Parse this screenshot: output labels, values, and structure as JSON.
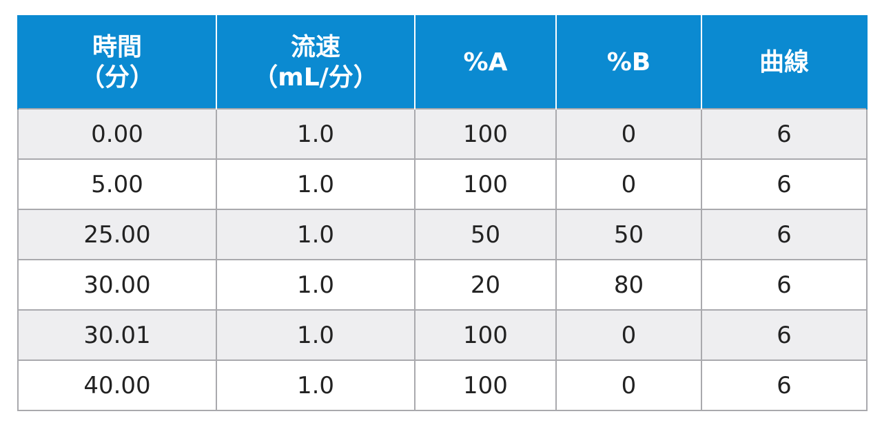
{
  "table": {
    "headers": [
      {
        "line1": "時間",
        "line2": "（分）"
      },
      {
        "line1": "流速",
        "line2": "（mL/分）"
      },
      {
        "line1": "%A",
        "line2": ""
      },
      {
        "line1": "%B",
        "line2": ""
      },
      {
        "line1": "曲線",
        "line2": ""
      }
    ],
    "rows": [
      [
        "0.00",
        "1.0",
        "100",
        "0",
        "6"
      ],
      [
        "5.00",
        "1.0",
        "100",
        "0",
        "6"
      ],
      [
        "25.00",
        "1.0",
        "50",
        "50",
        "6"
      ],
      [
        "30.00",
        "1.0",
        "20",
        "80",
        "6"
      ],
      [
        "30.01",
        "1.0",
        "100",
        "0",
        "6"
      ],
      [
        "40.00",
        "1.0",
        "100",
        "0",
        "6"
      ]
    ]
  },
  "colors": {
    "header_bg": "#0b8ad1",
    "header_text": "#ffffff",
    "row_shaded": "#eeeef0",
    "border": "#a9a9ad"
  }
}
